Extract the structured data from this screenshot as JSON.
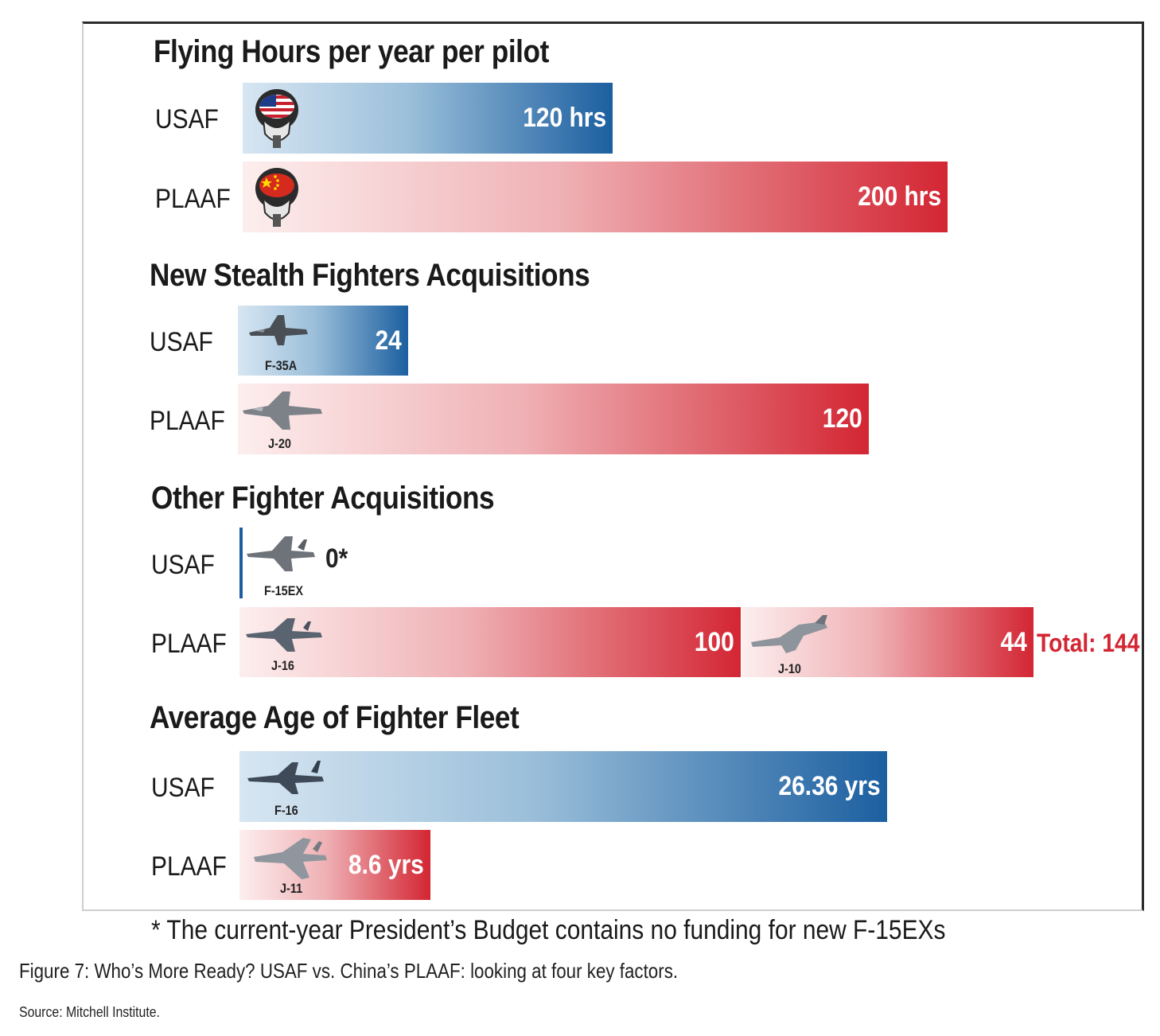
{
  "chart_data": [
    {
      "type": "bar",
      "orientation": "horizontal",
      "title": "Flying Hours per year per pilot",
      "categories": [
        "USAF",
        "PLAAF"
      ],
      "values": [
        120,
        200
      ],
      "value_labels": [
        "120 hrs",
        "200 hrs"
      ],
      "icons": [
        "us-flag-pilot-helmet",
        "china-flag-pilot-helmet"
      ]
    },
    {
      "type": "bar",
      "orientation": "horizontal",
      "title": "New Stealth Fighters Acquisitions",
      "categories": [
        "USAF",
        "PLAAF"
      ],
      "values": [
        24,
        120
      ],
      "value_labels": [
        "24",
        "120"
      ],
      "aircraft": [
        "F-35A",
        "J-20"
      ]
    },
    {
      "type": "bar",
      "orientation": "horizontal",
      "stacked": true,
      "title": "Other Fighter Acquisitions",
      "categories": [
        "USAF",
        "PLAAF"
      ],
      "series": [
        {
          "values": [
            0,
            100
          ],
          "value_labels": [
            "0*",
            "100"
          ],
          "aircraft": [
            "F-15EX",
            "J-16"
          ]
        },
        {
          "values": [
            0,
            44
          ],
          "value_labels": [
            "",
            "44"
          ],
          "aircraft": [
            "",
            "J-10"
          ]
        }
      ],
      "total_label": "Total: 144"
    },
    {
      "type": "bar",
      "orientation": "horizontal",
      "title": "Average Age of Fighter Fleet",
      "categories": [
        "USAF",
        "PLAAF"
      ],
      "values": [
        26.36,
        8.6
      ],
      "value_labels": [
        "26.36 yrs",
        "8.6 yrs"
      ],
      "aircraft": [
        "F-16",
        "J-11"
      ]
    }
  ],
  "footnote": "* The current-year President’s Budget contains no funding for new F-15EXs",
  "caption": "Figure 7: Who’s More Ready? USAF vs. China’s PLAAF: looking at four key factors.",
  "source": "Source: Mitchell Institute.",
  "colors": {
    "usaf": "#1c5fa0",
    "plaaf": "#d32633",
    "total": "#d32633"
  }
}
